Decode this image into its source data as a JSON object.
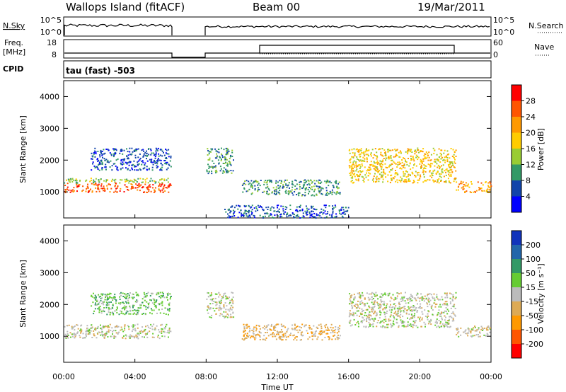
{
  "header": {
    "station": "Wallops Island (fitACF)",
    "beam": "Beam 00",
    "date": "19/Mar/2011"
  },
  "strip": {
    "nsky_label": "N.Sky",
    "nsky_ticks": [
      "10^5",
      "10^0"
    ],
    "nsearch_label": "N.Search",
    "nsearch_ticks": [
      "10^5",
      "10^0"
    ],
    "freq_label_1": "Freq.",
    "freq_label_2": "[MHz]",
    "freq_ticks": [
      "18",
      "8"
    ],
    "nave_label": "Nave",
    "nave_ticks": [
      "60",
      "0"
    ],
    "cpid_label": "CPID",
    "cpid_text": "tau (fast) -503"
  },
  "colorbars": {
    "power": {
      "title": "Power [dB]",
      "ticks": [
        "28",
        "24",
        "20",
        "16",
        "12",
        "8",
        "4"
      ],
      "colors": [
        "#ff0000",
        "#ff5500",
        "#ff9900",
        "#ffcc00",
        "#99cc33",
        "#339966",
        "#1144aa",
        "#0000ff"
      ]
    },
    "velocity": {
      "title": "Velocity [m s⁻¹]",
      "ticks": [
        "200",
        "100",
        "50",
        "15",
        "-15",
        "-50",
        "-100",
        "-200"
      ],
      "colors": [
        "#1133bb",
        "#2266aa",
        "#339966",
        "#66cc33",
        "#bbbbbb",
        "#ddaa55",
        "#ff9900",
        "#ff5500",
        "#ff0000"
      ]
    }
  },
  "chart_data": [
    {
      "type": "heatmap",
      "name": "Power",
      "ylabel": "Slant Range [km]",
      "xlabel": "Time UT",
      "ylim": [
        180,
        4500
      ],
      "yticks": [
        "1000",
        "2000",
        "3000",
        "4000"
      ],
      "xticks": [
        "00:00",
        "04:00",
        "08:00",
        "12:00",
        "16:00",
        "20:00",
        "00:00"
      ],
      "x_range_hours": [
        0,
        24
      ],
      "bands": [
        {
          "t0": 0.0,
          "t1": 6.0,
          "r0": 1000,
          "r1": 1300,
          "level": 6
        },
        {
          "t0": 0.0,
          "t1": 6.0,
          "r0": 1300,
          "r1": 1450,
          "level": 3
        },
        {
          "t0": 1.5,
          "t1": 6.0,
          "r0": 1700,
          "r1": 2400,
          "level": 1
        },
        {
          "t0": 8.0,
          "t1": 9.5,
          "r0": 1600,
          "r1": 2400,
          "level": 2
        },
        {
          "t0": 10.0,
          "t1": 15.5,
          "r0": 900,
          "r1": 1400,
          "level": 2
        },
        {
          "t0": 9.0,
          "t1": 16.0,
          "r0": 200,
          "r1": 600,
          "level": 1
        },
        {
          "t0": 16.0,
          "t1": 22.0,
          "r0": 1300,
          "r1": 2400,
          "level": 4
        },
        {
          "t0": 22.0,
          "t1": 24.0,
          "r0": 1000,
          "r1": 1350,
          "level": 5
        }
      ]
    },
    {
      "type": "heatmap",
      "name": "Velocity",
      "ylabel": "Slant Range [km]",
      "xlabel": "Time UT",
      "ylim": [
        180,
        4500
      ],
      "yticks": [
        "1000",
        "2000",
        "3000",
        "4000"
      ],
      "xticks": [
        "00:00",
        "04:00",
        "08:00",
        "12:00",
        "16:00",
        "20:00",
        "00:00"
      ],
      "x_range_hours": [
        0,
        24
      ],
      "bands": [
        {
          "t0": 0.0,
          "t1": 6.0,
          "r0": 950,
          "r1": 1400,
          "level": 4
        },
        {
          "t0": 1.5,
          "t1": 6.0,
          "r0": 1700,
          "r1": 2400,
          "level": 5
        },
        {
          "t0": 8.0,
          "t1": 9.5,
          "r0": 1600,
          "r1": 2400,
          "level": 4
        },
        {
          "t0": 10.0,
          "t1": 15.5,
          "r0": 900,
          "r1": 1400,
          "level": 3
        },
        {
          "t0": 16.0,
          "t1": 22.0,
          "r0": 1300,
          "r1": 2400,
          "level": 4
        },
        {
          "t0": 22.0,
          "t1": 24.0,
          "r0": 1000,
          "r1": 1350,
          "level": 4
        }
      ]
    }
  ]
}
